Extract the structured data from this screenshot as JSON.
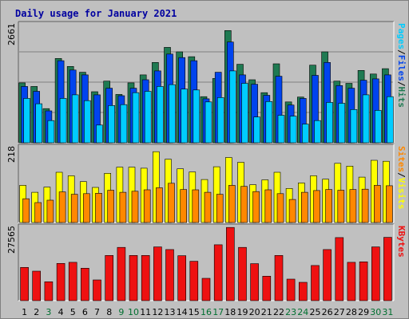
{
  "chart_data": {
    "type": "bar",
    "title": "Daily usage for January 2021",
    "colors": {
      "background": "#c0c0c0",
      "plot_background": "#c0c0c0",
      "grid": "#808080",
      "title": "#0000a0",
      "weekday_label": "#000000",
      "weekend_label": "#007030",
      "hits": "#1f7a52",
      "files": "#0044ee",
      "pages": "#00ccff",
      "visits": "#ffff00",
      "sites": "#ff8800",
      "kbytes": "#ee1111"
    },
    "x": [
      "1",
      "2",
      "3",
      "4",
      "5",
      "6",
      "7",
      "8",
      "9",
      "10",
      "11",
      "12",
      "13",
      "14",
      "15",
      "16",
      "17",
      "18",
      "19",
      "20",
      "21",
      "22",
      "23",
      "24",
      "25",
      "26",
      "27",
      "28",
      "29",
      "30",
      "31"
    ],
    "weekend_days": [
      "3",
      "9",
      "10",
      "16",
      "17",
      "23",
      "24",
      "30",
      "31"
    ],
    "panels": [
      {
        "ymax_label": "2661",
        "ylim": [
          0,
          2661
        ],
        "legend": [
          "Pages",
          "/",
          "Files",
          "/",
          "Hits"
        ],
        "legend_colors": [
          "#00ccff",
          "#000000",
          "#0044ee",
          "#000000",
          "#1f7a52"
        ],
        "series": [
          {
            "name": "Hits",
            "values": [
              1350,
              1270,
              770,
              1900,
              1720,
              1590,
              1150,
              1390,
              1090,
              1350,
              1530,
              1810,
              2150,
              2050,
              1940,
              1040,
              1450,
              2530,
              1770,
              1420,
              1130,
              1780,
              920,
              1030,
              1750,
              2050,
              1390,
              1340,
              1630,
              1550,
              1670
            ]
          },
          {
            "name": "Files",
            "values": [
              1270,
              1160,
              720,
              1850,
              1640,
              1530,
              1080,
              1230,
              1060,
              1230,
              1420,
              1620,
              2000,
              1920,
              1850,
              990,
              1590,
              2270,
              1530,
              1320,
              1070,
              1500,
              850,
              1000,
              1520,
              1810,
              1290,
              1230,
              1410,
              1440,
              1530
            ]
          },
          {
            "name": "Pages",
            "values": [
              1000,
              880,
              500,
              1000,
              1080,
              950,
              400,
              840,
              860,
              1130,
              1160,
              1270,
              1310,
              1210,
              1190,
              920,
              1020,
              1620,
              1340,
              580,
              930,
              620,
              600,
              420,
              500,
              910,
              890,
              750,
              1080,
              730,
              1040
            ]
          }
        ]
      },
      {
        "ymax_label": "218",
        "ylim": [
          0,
          218
        ],
        "legend": [
          "Sites",
          "/",
          "Visits"
        ],
        "legend_colors": [
          "#ff8800",
          "#000000",
          "#ffff00"
        ],
        "series": [
          {
            "name": "Visits",
            "values": [
              108,
              88,
              103,
              146,
              136,
              119,
              102,
              143,
              161,
              161,
              158,
              206,
              184,
              156,
              147,
              125,
              162,
              189,
              175,
              110,
              124,
              146,
              99,
              115,
              136,
              126,
              172,
              164,
              132,
              181,
              178
            ]
          },
          {
            "name": "Sites",
            "values": [
              69,
              58,
              65,
              89,
              82,
              84,
              85,
              94,
              88,
              91,
              95,
              101,
              114,
              96,
              95,
              88,
              82,
              108,
              105,
              90,
              95,
              84,
              67,
              88,
              93,
              96,
              94,
              96,
              97,
              108,
              107
            ]
          }
        ]
      },
      {
        "ymax_label": "27565",
        "ylim": [
          0,
          27565
        ],
        "legend": [
          "KBytes"
        ],
        "legend_colors": [
          "#ee1111"
        ],
        "series": [
          {
            "name": "KBytes",
            "values": [
              12500,
              11100,
              7100,
              14000,
              14400,
              12200,
              7800,
              17000,
              20000,
              17000,
              17000,
              20200,
              19200,
              16900,
              14800,
              8400,
              21000,
              27500,
              20000,
              13900,
              9200,
              17000,
              8100,
              6900,
              13200,
              19200,
              23700,
              14400,
              14600,
              20200,
              23800
            ]
          }
        ]
      }
    ]
  }
}
